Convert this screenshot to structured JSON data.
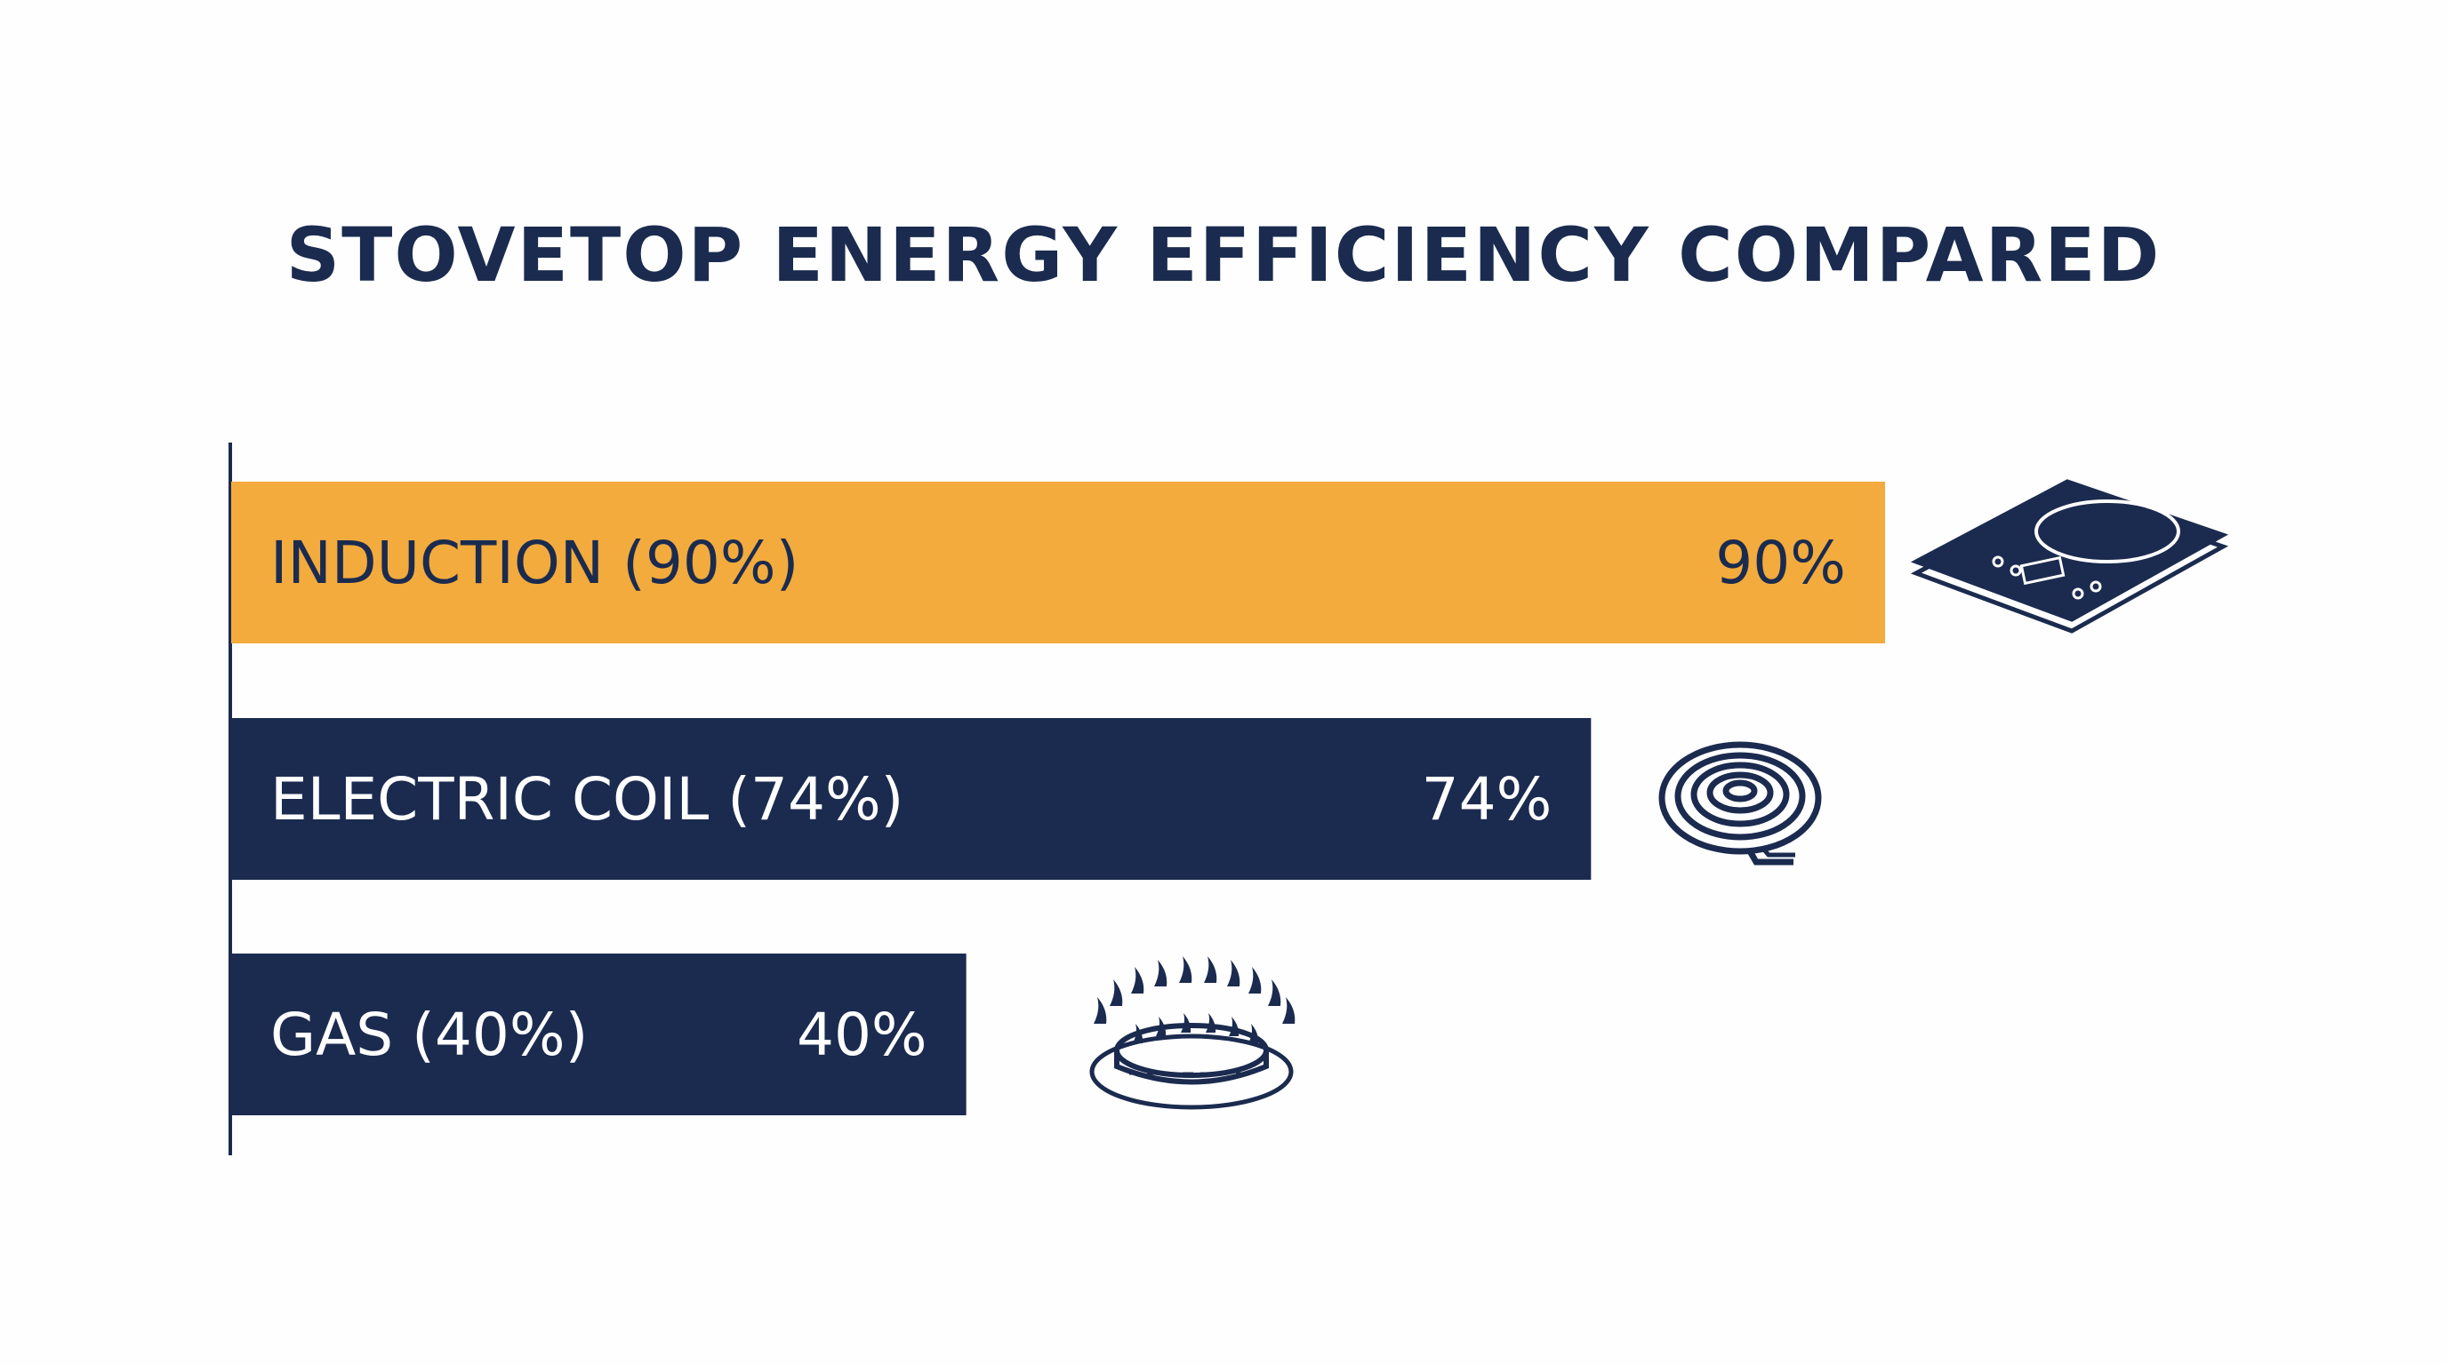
{
  "colors": {
    "navy": "#1b2b4f",
    "accent": "#f2ab3c",
    "background": "#fefefe",
    "bar_text_on_navy": "#ffffff",
    "bar_text_on_accent": "#1b2b4f"
  },
  "chart_data": {
    "type": "bar",
    "orientation": "horizontal",
    "title": "STOVETOP ENERGY EFFICIENCY COMPARED",
    "categories": [
      "INDUCTION (90%)",
      "ELECTRIC COIL (74%)",
      "GAS (40%)"
    ],
    "values": [
      90,
      74,
      40
    ],
    "value_labels": [
      "90%",
      "74%",
      "40%"
    ],
    "unit": "%",
    "xlim": [
      0,
      100
    ],
    "grid": false,
    "legend": "none",
    "icons": [
      "induction-cooktop-icon",
      "electric-coil-icon",
      "gas-burner-icon"
    ],
    "highlight_index": 0
  }
}
